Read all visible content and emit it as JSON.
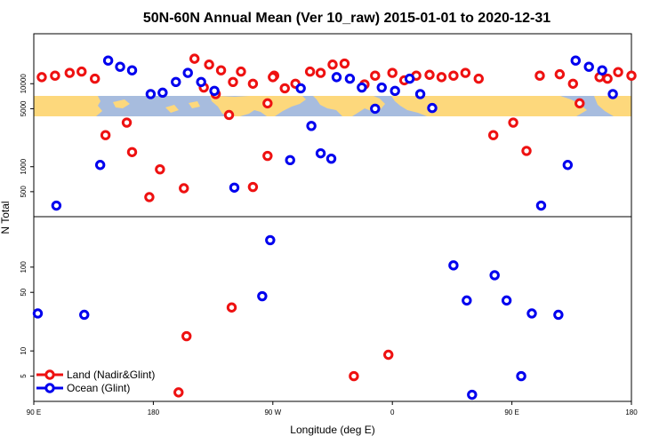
{
  "chart_data": {
    "type": "scatter",
    "title": "50N-60N Annual Mean (Ver 10_raw)   2015-01-01 to 2020-12-31",
    "xlabel": "Longitude (deg E)",
    "ylabel": "N Total",
    "x_ticks": [
      {
        "value": 90,
        "label": "90 E"
      },
      {
        "value": 180,
        "label": "180"
      },
      {
        "value": 270,
        "label": "90 W"
      },
      {
        "value": 360,
        "label": "0"
      },
      {
        "value": 450,
        "label": "90 E"
      },
      {
        "value": 540,
        "label": "180"
      }
    ],
    "xlim": [
      90,
      540
    ],
    "lower_panel": {
      "scale": "log",
      "ylim": [
        2.5,
        400
      ],
      "y_ticks": [
        {
          "value": 5,
          "label": "5"
        },
        {
          "value": 10,
          "label": "10"
        },
        {
          "value": 50,
          "label": "50"
        },
        {
          "value": 100,
          "label": "100"
        }
      ]
    },
    "upper_panel": {
      "scale": "log",
      "ylim": [
        250,
        40000
      ],
      "y_ticks": [
        {
          "value": 500,
          "label": "500"
        },
        {
          "value": 1000,
          "label": "1000"
        },
        {
          "value": 5000,
          "label": "5000"
        },
        {
          "value": 10000,
          "label": "10000"
        }
      ],
      "map_band": {
        "y_low": 3300,
        "y_high": 6000,
        "ocean_color": "#a7bcde",
        "land_color": "#fdd87c"
      }
    },
    "series": [
      {
        "name": "Land (Nadir&Glint)",
        "color": "#ee1111",
        "points": [
          [
            96,
            12000
          ],
          [
            106,
            12500
          ],
          [
            117,
            13500
          ],
          [
            126,
            14000
          ],
          [
            136,
            11500
          ],
          [
            144,
            2400
          ],
          [
            160,
            3400
          ],
          [
            164,
            1500
          ],
          [
            211,
            20000
          ],
          [
            222,
            17000
          ],
          [
            231,
            14500
          ],
          [
            246,
            14000
          ],
          [
            255,
            10000
          ],
          [
            266,
            5800
          ],
          [
            271,
            12500
          ],
          [
            279,
            8800
          ],
          [
            287,
            10000
          ],
          [
            298,
            14000
          ],
          [
            306,
            13500
          ],
          [
            315,
            17000
          ],
          [
            324,
            17500
          ],
          [
            339,
            9800
          ],
          [
            347,
            12500
          ],
          [
            360,
            13500
          ],
          [
            369,
            11000
          ],
          [
            378,
            12500
          ],
          [
            388,
            12800
          ],
          [
            397,
            12000
          ],
          [
            406,
            12500
          ],
          [
            415,
            13500
          ],
          [
            425,
            11500
          ],
          [
            436,
            2400
          ],
          [
            451,
            3400
          ],
          [
            461,
            1550
          ],
          [
            471,
            12500
          ],
          [
            486,
            13000
          ],
          [
            496,
            10000
          ],
          [
            501,
            5800
          ],
          [
            516,
            12000
          ],
          [
            522,
            11500
          ],
          [
            530,
            13800
          ],
          [
            540,
            12500
          ],
          [
            199,
            3.2
          ],
          [
            205,
            15
          ],
          [
            239,
            33
          ],
          [
            331,
            5
          ],
          [
            357,
            9
          ],
          [
            177,
            430
          ],
          [
            185,
            930
          ],
          [
            203,
            550
          ],
          [
            218,
            9000
          ],
          [
            227,
            7500
          ],
          [
            237,
            4200
          ],
          [
            240,
            10500
          ],
          [
            255,
            570
          ],
          [
            266,
            1350
          ],
          [
            270,
            12000
          ]
        ]
      },
      {
        "name": "Ocean (Glint)",
        "color": "#0000ee",
        "points": [
          [
            93,
            28
          ],
          [
            107,
            340
          ],
          [
            128,
            27
          ],
          [
            140,
            1050
          ],
          [
            146,
            19000
          ],
          [
            155,
            16000
          ],
          [
            164,
            14500
          ],
          [
            178,
            7500
          ],
          [
            187,
            7800
          ],
          [
            197,
            10500
          ],
          [
            206,
            13500
          ],
          [
            216,
            10500
          ],
          [
            226,
            8200
          ],
          [
            241,
            560
          ],
          [
            262,
            45
          ],
          [
            268,
            210
          ],
          [
            283,
            1200
          ],
          [
            291,
            8800
          ],
          [
            299,
            3100
          ],
          [
            306,
            1450
          ],
          [
            314,
            1250
          ],
          [
            318,
            12000
          ],
          [
            328,
            11500
          ],
          [
            337,
            9000
          ],
          [
            347,
            5000
          ],
          [
            352,
            9000
          ],
          [
            362,
            8200
          ],
          [
            373,
            11500
          ],
          [
            381,
            7500
          ],
          [
            390,
            5100
          ],
          [
            406,
            105
          ],
          [
            416,
            40
          ],
          [
            420,
            3
          ],
          [
            437,
            80
          ],
          [
            446,
            40
          ],
          [
            457,
            5
          ],
          [
            465,
            28
          ],
          [
            472,
            340
          ],
          [
            485,
            27
          ],
          [
            492,
            1050
          ],
          [
            498,
            19000
          ],
          [
            508,
            16000
          ],
          [
            518,
            14500
          ],
          [
            526,
            7500
          ]
        ]
      }
    ],
    "legend": {
      "placement": "bottom-left",
      "entries": [
        {
          "label": "Land (Nadir&Glint)",
          "color": "#ee1111"
        },
        {
          "label": "Ocean (Glint)",
          "color": "#0000ee"
        }
      ]
    }
  }
}
